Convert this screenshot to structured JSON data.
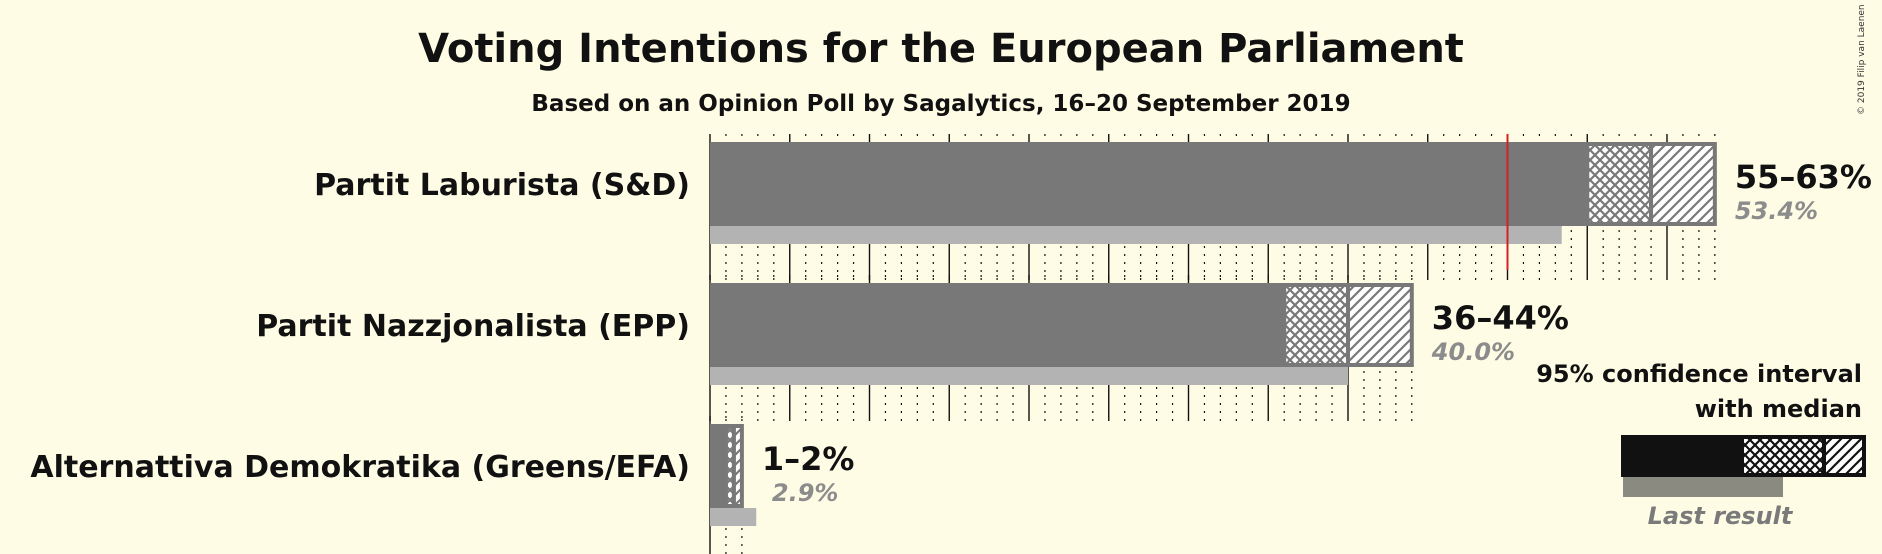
{
  "chart_data": {
    "type": "bar",
    "title": "Voting Intentions for the European Parliament",
    "subtitle": "Based on an Opinion Poll by Sagalytics, 16–20 September 2019",
    "copyright": "© 2019 Filip van Laenen",
    "majority_line": 50,
    "series": [
      {
        "name": "Partit Laburista (S&D)",
        "range_label": "55–63%",
        "last_label": "53.4%",
        "ci_low": 55,
        "median": 59,
        "ci_high": 63,
        "last_result": 53.4
      },
      {
        "name": "Partit Nazzjonalista (EPP)",
        "range_label": "36–44%",
        "last_label": "40.0%",
        "ci_low": 36,
        "median": 40,
        "ci_high": 44,
        "last_result": 40.0
      },
      {
        "name": "Alternattiva Demokratika (Greens/EFA)",
        "range_label": "1–2%",
        "last_label": "2.9%",
        "ci_low": 1,
        "median": 1.5,
        "ci_high": 2,
        "last_result": 2.9
      }
    ],
    "legend": {
      "title_line1": "95% confidence interval",
      "title_line2": "with median",
      "last_result": "Last result"
    },
    "colors": {
      "bar": "#787878",
      "last_result": "#b3b3b3",
      "majority": "#d42020",
      "legend_solid": "#111111",
      "legend_last": "#8a8a80"
    }
  }
}
